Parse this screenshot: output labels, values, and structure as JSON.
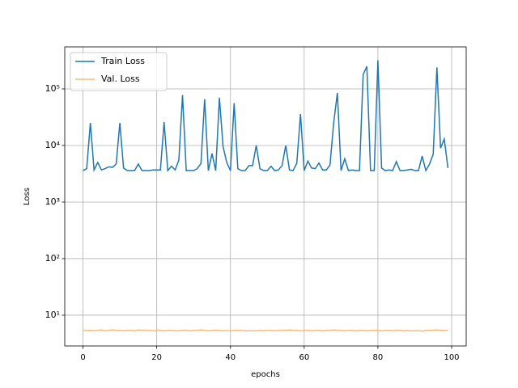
{
  "chart_data": {
    "type": "line",
    "x_label": "epochs",
    "y_label": "Loss",
    "x": [
      0,
      1,
      2,
      3,
      4,
      5,
      6,
      7,
      8,
      9,
      10,
      11,
      12,
      13,
      14,
      15,
      16,
      17,
      18,
      19,
      20,
      21,
      22,
      23,
      24,
      25,
      26,
      27,
      28,
      29,
      30,
      31,
      32,
      33,
      34,
      35,
      36,
      37,
      38,
      39,
      40,
      41,
      42,
      43,
      44,
      45,
      46,
      47,
      48,
      49,
      50,
      51,
      52,
      53,
      54,
      55,
      56,
      57,
      58,
      59,
      60,
      61,
      62,
      63,
      64,
      65,
      66,
      67,
      68,
      69,
      70,
      71,
      72,
      73,
      74,
      75,
      76,
      77,
      78,
      79,
      80,
      81,
      82,
      83,
      84,
      85,
      86,
      87,
      88,
      89,
      90,
      91,
      92,
      93,
      94,
      95,
      96,
      97,
      98,
      99
    ],
    "series": [
      {
        "name": "Train Loss",
        "color": "#1f77b4",
        "values": [
          3600,
          3900,
          25000,
          3700,
          5000,
          3700,
          3900,
          4200,
          4100,
          4700,
          25000,
          4000,
          3600,
          3600,
          3600,
          4700,
          3600,
          3600,
          3600,
          3700,
          3700,
          3700,
          26000,
          3600,
          4300,
          3700,
          5500,
          78000,
          3600,
          3600,
          3600,
          3900,
          4800,
          66000,
          3600,
          7200,
          3600,
          70000,
          9500,
          5000,
          3600,
          56000,
          3900,
          3600,
          3600,
          4400,
          4400,
          10000,
          3900,
          3600,
          3600,
          4300,
          3600,
          3700,
          4400,
          10000,
          3700,
          3600,
          4900,
          36000,
          3600,
          5300,
          4000,
          3900,
          4900,
          3700,
          3700,
          4500,
          25000,
          85000,
          3600,
          5800,
          3600,
          3700,
          3600,
          3600,
          180000,
          250000,
          3600,
          3600,
          320000,
          4000,
          3600,
          3700,
          3600,
          5200,
          3600,
          3600,
          3700,
          3800,
          3600,
          3600,
          6500,
          3600,
          4700,
          7000,
          240000,
          9000,
          13000,
          4000
        ]
      },
      {
        "name": "Val. Loss",
        "color": "#ffbb78",
        "values": [
          5.4,
          5.4,
          5.4,
          5.3,
          5.4,
          5.5,
          5.3,
          5.4,
          5.5,
          5.4,
          5.4,
          5.3,
          5.4,
          5.4,
          5.3,
          5.5,
          5.4,
          5.4,
          5.4,
          5.3,
          5.4,
          5.4,
          5.3,
          5.4,
          5.4,
          5.3,
          5.3,
          5.4,
          5.4,
          5.3,
          5.4,
          5.4,
          5.5,
          5.4,
          5.3,
          5.4,
          5.4,
          5.4,
          5.3,
          5.4,
          5.3,
          5.4,
          5.4,
          5.4,
          5.3,
          5.3,
          5.3,
          5.3,
          5.4,
          5.3,
          5.4,
          5.4,
          5.3,
          5.4,
          5.4,
          5.4,
          5.5,
          5.4,
          5.4,
          5.3,
          5.4,
          5.4,
          5.3,
          5.4,
          5.4,
          5.3,
          5.4,
          5.4,
          5.5,
          5.4,
          5.4,
          5.3,
          5.4,
          5.4,
          5.3,
          5.4,
          5.4,
          5.3,
          5.4,
          5.4,
          5.4,
          5.3,
          5.4,
          5.4,
          5.3,
          5.4,
          5.4,
          5.3,
          5.4,
          5.3,
          5.3,
          5.4,
          5.2,
          5.4,
          5.4,
          5.4,
          5.5,
          5.4,
          5.4,
          5.4
        ]
      }
    ],
    "xlim": [
      -4.95,
      103.95
    ],
    "xticks": [
      0,
      20,
      40,
      60,
      80,
      100
    ],
    "ylim": [
      2.86,
      553000
    ],
    "log_y": true,
    "yticks": [
      {
        "value": 10,
        "label": "10¹"
      },
      {
        "value": 100,
        "label": "10²"
      },
      {
        "value": 1000,
        "label": "10³"
      },
      {
        "value": 10000,
        "label": "10⁴"
      },
      {
        "value": 100000,
        "label": "10⁵"
      }
    ],
    "grid": true,
    "legend": "upper-left"
  }
}
